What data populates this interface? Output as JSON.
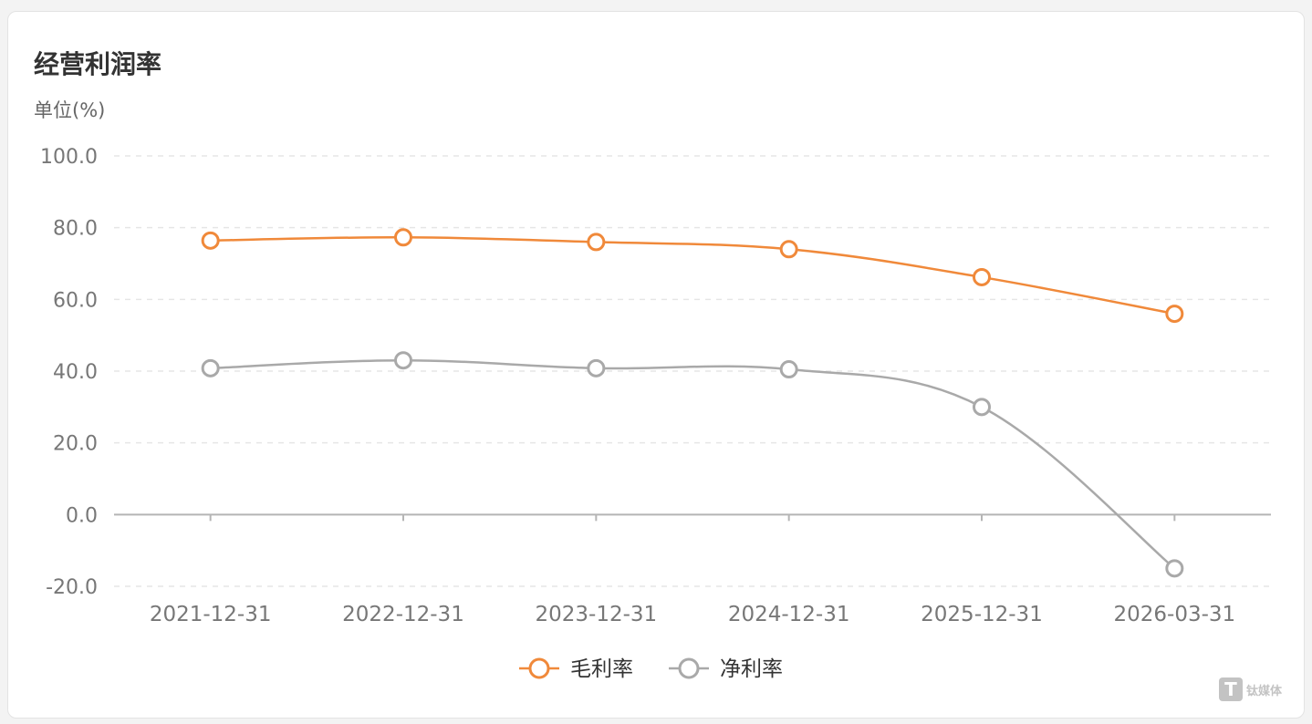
{
  "card": {
    "title": "经营利润率",
    "unit_label": "单位(%)",
    "watermark_text": "钛媒体"
  },
  "colors": {
    "gross": "#f0893a",
    "net": "#a9a9a9",
    "grid": "#e6e6e6",
    "axis": "#b5b5b5"
  },
  "chart_data": {
    "type": "line",
    "title": "经营利润率",
    "ylabel": "单位(%)",
    "xlabel": "",
    "categories": [
      "2021-12-31",
      "2022-12-31",
      "2023-12-31",
      "2024-12-31",
      "2025-12-31",
      "2026-03-31"
    ],
    "yticks": [
      "100.0",
      "80.0",
      "60.0",
      "40.0",
      "20.0",
      "0.0",
      "-20.0"
    ],
    "ylim": [
      -20,
      100
    ],
    "grid": "horizontal dashed",
    "legend_position": "bottom-center",
    "series": [
      {
        "name": "毛利率",
        "color": "#f0893a",
        "values": [
          76.4,
          77.3,
          76.0,
          74.0,
          66.2,
          56.0
        ]
      },
      {
        "name": "净利率",
        "color": "#a9a9a9",
        "values": [
          40.8,
          43.0,
          40.8,
          40.5,
          30.0,
          -15.0
        ]
      }
    ]
  }
}
